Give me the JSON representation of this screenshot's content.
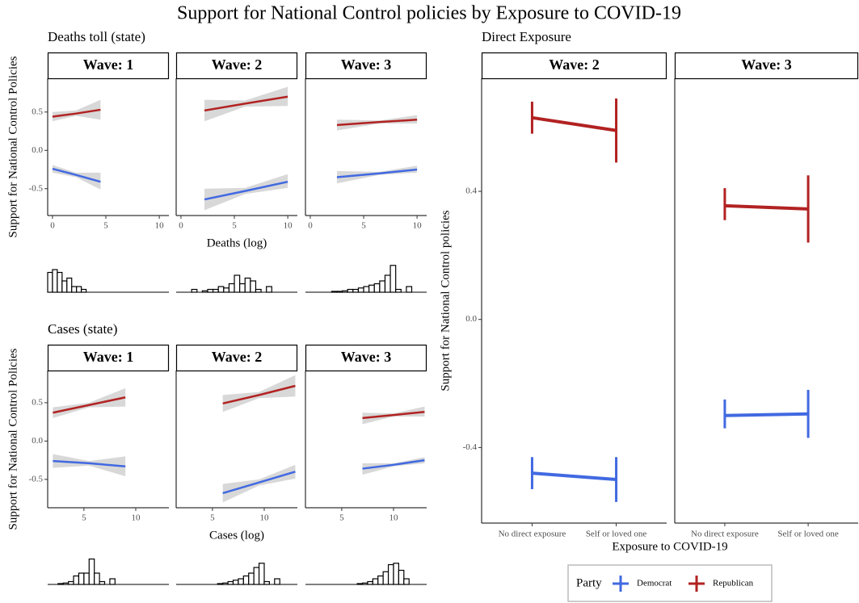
{
  "title": "Support for National Control policies by Exposure to COVID-19",
  "chart_data": [
    {
      "type": "line",
      "title": "Deaths toll (state)",
      "ylabel": "Support for National Control Policies",
      "xlabel": "Deaths (log)",
      "xlim": [
        -0.45,
        10.9
      ],
      "xticks": [
        0,
        5,
        10
      ],
      "ylim": [
        -0.85,
        0.94
      ],
      "yticks": [
        -0.5,
        {
          "value": 0,
          "label": "0.0"
        },
        0.5
      ],
      "hist_ylim": [
        0,
        10
      ],
      "panels": [
        {
          "label": "Wave: 1",
          "series": [
            {
              "name": "Republican",
              "color": "#b22222",
              "x": [
                0,
                2.2,
                4.5
              ],
              "values": [
                0.44,
                0.48,
                0.53
              ],
              "lower": [
                0.38,
                0.45,
                0.4
              ],
              "upper": [
                0.5,
                0.52,
                0.66
              ]
            },
            {
              "name": "Democrat",
              "color": "#4169e1",
              "x": [
                0,
                2.2,
                4.5
              ],
              "values": [
                -0.24,
                -0.32,
                -0.41
              ],
              "lower": [
                -0.29,
                -0.35,
                -0.51
              ],
              "upper": [
                -0.19,
                -0.29,
                -0.29
              ]
            }
          ],
          "histogram": {
            "bins": [
              -0.45,
              0,
              0.45,
              0.9,
              1.35,
              1.8,
              2.25,
              2.7,
              3.15
            ],
            "counts": [
              7,
              8,
              7,
              4,
              5,
              2,
              2,
              1
            ]
          }
        },
        {
          "label": "Wave: 2",
          "series": [
            {
              "name": "Republican",
              "color": "#b22222",
              "x": [
                2.2,
                6,
                10
              ],
              "values": [
                0.52,
                0.61,
                0.7
              ],
              "lower": [
                0.38,
                0.57,
                0.58
              ],
              "upper": [
                0.66,
                0.65,
                0.83
              ]
            },
            {
              "name": "Democrat",
              "color": "#4169e1",
              "x": [
                2.2,
                6,
                10
              ],
              "values": [
                -0.64,
                -0.53,
                -0.41
              ],
              "lower": [
                -0.78,
                -0.57,
                -0.49
              ],
              "upper": [
                -0.5,
                -0.49,
                -0.31
              ]
            }
          ],
          "histogram": {
            "bins": [
              1,
              1.5,
              2,
              2.5,
              3,
              3.5,
              4,
              4.5,
              5,
              5.5,
              6,
              6.5,
              7,
              7.5,
              8,
              8.5,
              9
            ],
            "counts": [
              1,
              0,
              0.5,
              1,
              1,
              2,
              1.5,
              3,
              6,
              3,
              5,
              4,
              1,
              0,
              2,
              0
            ]
          }
        },
        {
          "label": "Wave: 3",
          "series": [
            {
              "name": "Republican",
              "color": "#b22222",
              "x": [
                2.5,
                6.5,
                10
              ],
              "values": [
                0.33,
                0.37,
                0.4
              ],
              "lower": [
                0.26,
                0.35,
                0.35
              ],
              "upper": [
                0.4,
                0.39,
                0.46
              ]
            },
            {
              "name": "Democrat",
              "color": "#4169e1",
              "x": [
                2.5,
                6.5,
                10
              ],
              "values": [
                -0.35,
                -0.3,
                -0.25
              ],
              "lower": [
                -0.43,
                -0.32,
                -0.29
              ],
              "upper": [
                -0.27,
                -0.28,
                -0.2
              ]
            }
          ],
          "histogram": {
            "bins": [
              2,
              2.5,
              3,
              3.5,
              4,
              4.5,
              5,
              5.5,
              6,
              6.5,
              7,
              7.5,
              8,
              8.5,
              9,
              9.5
            ],
            "counts": [
              0.3,
              0.3,
              0.5,
              1,
              1,
              1.5,
              2,
              2.5,
              3,
              4,
              6,
              9.5,
              1,
              0,
              2
            ]
          }
        }
      ]
    },
    {
      "type": "line",
      "title": "Cases (state)",
      "ylabel": "Support for National Control Policies",
      "xlabel": "Cases (log)",
      "xlim": [
        1.5,
        13.2
      ],
      "xticks": [
        5,
        10
      ],
      "ylim": [
        -0.87,
        0.92
      ],
      "yticks": [
        -0.5,
        {
          "value": 0,
          "label": "0.0"
        },
        0.5
      ],
      "hist_ylim": [
        0,
        10
      ],
      "panels": [
        {
          "label": "Wave: 1",
          "series": [
            {
              "name": "Republican",
              "color": "#b22222",
              "x": [
                2,
                5.5,
                9
              ],
              "values": [
                0.37,
                0.47,
                0.57
              ],
              "lower": [
                0.3,
                0.44,
                0.45
              ],
              "upper": [
                0.44,
                0.5,
                0.69
              ]
            },
            {
              "name": "Democrat",
              "color": "#4169e1",
              "x": [
                2,
                5.5,
                9
              ],
              "values": [
                -0.26,
                -0.29,
                -0.33
              ],
              "lower": [
                -0.35,
                -0.32,
                -0.46
              ],
              "upper": [
                -0.17,
                -0.26,
                -0.2
              ]
            }
          ],
          "histogram": {
            "bins": [
              2.5,
              3,
              3.5,
              4,
              4.5,
              5,
              5.5,
              6,
              6.5,
              7,
              7.5,
              8
            ],
            "counts": [
              0.3,
              0.5,
              1,
              3,
              4,
              4,
              9,
              4,
              1,
              0,
              2
            ]
          }
        },
        {
          "label": "Wave: 2",
          "series": [
            {
              "name": "Republican",
              "color": "#b22222",
              "x": [
                6,
                9.5,
                13
              ],
              "values": [
                0.49,
                0.6,
                0.72
              ],
              "lower": [
                0.38,
                0.56,
                0.58
              ],
              "upper": [
                0.6,
                0.64,
                0.86
              ]
            },
            {
              "name": "Democrat",
              "color": "#4169e1",
              "x": [
                6,
                9.5,
                13
              ],
              "values": [
                -0.68,
                -0.54,
                -0.4
              ],
              "lower": [
                -0.8,
                -0.58,
                -0.49
              ],
              "upper": [
                -0.56,
                -0.5,
                -0.31
              ]
            }
          ],
          "histogram": {
            "bins": [
              5.5,
              6,
              6.5,
              7,
              7.5,
              8,
              8.5,
              9,
              9.5,
              10,
              10.5,
              11,
              11.5
            ],
            "counts": [
              0.3,
              0.5,
              1,
              1.5,
              2,
              3,
              4,
              6,
              7.5,
              1,
              0,
              2
            ]
          }
        },
        {
          "label": "Wave: 3",
          "series": [
            {
              "name": "Republican",
              "color": "#b22222",
              "x": [
                7,
                10,
                13
              ],
              "values": [
                0.3,
                0.34,
                0.38
              ],
              "lower": [
                0.22,
                0.32,
                0.32
              ],
              "upper": [
                0.37,
                0.36,
                0.45
              ]
            },
            {
              "name": "Democrat",
              "color": "#4169e1",
              "x": [
                7,
                10,
                13
              ],
              "values": [
                -0.36,
                -0.31,
                -0.25
              ],
              "lower": [
                -0.44,
                -0.33,
                -0.29
              ],
              "upper": [
                -0.29,
                -0.29,
                -0.21
              ]
            }
          ],
          "histogram": {
            "bins": [
              6.5,
              7,
              7.5,
              8,
              8.5,
              9,
              9.5,
              10,
              10.5,
              11,
              11.5
            ],
            "counts": [
              0.3,
              0.5,
              1,
              2,
              3,
              4.5,
              7,
              7.5,
              5,
              2
            ]
          }
        }
      ]
    },
    {
      "type": "errorbar",
      "title": "Direct Exposure",
      "ylabel": "Support for National Control policies",
      "xlabel": "Exposure to COVID-19",
      "categories": [
        "No direct exposure",
        "Self or loved one"
      ],
      "ylim": [
        -0.636,
        0.753
      ],
      "yticks": [
        -0.4,
        {
          "value": 0,
          "label": "0.0"
        },
        0.4
      ],
      "legend_title": "Party",
      "legend": "bottom",
      "panels": [
        {
          "label": "Wave: 2",
          "series": [
            {
              "name": "Democrat",
              "color": "#4169e1",
              "values": [
                -0.48,
                -0.5
              ],
              "lower": [
                -0.53,
                -0.57
              ],
              "upper": [
                -0.43,
                -0.43
              ]
            },
            {
              "name": "Republican",
              "color": "#b22222",
              "values": [
                0.63,
                0.59
              ],
              "lower": [
                0.58,
                0.49
              ],
              "upper": [
                0.68,
                0.69
              ]
            }
          ]
        },
        {
          "label": "Wave: 3",
          "series": [
            {
              "name": "Democrat",
              "color": "#4169e1",
              "values": [
                -0.3,
                -0.295
              ],
              "lower": [
                -0.34,
                -0.37
              ],
              "upper": [
                -0.25,
                -0.22
              ]
            },
            {
              "name": "Republican",
              "color": "#b22222",
              "values": [
                0.355,
                0.345
              ],
              "lower": [
                0.31,
                0.24
              ],
              "upper": [
                0.41,
                0.45
              ]
            }
          ]
        }
      ]
    }
  ]
}
